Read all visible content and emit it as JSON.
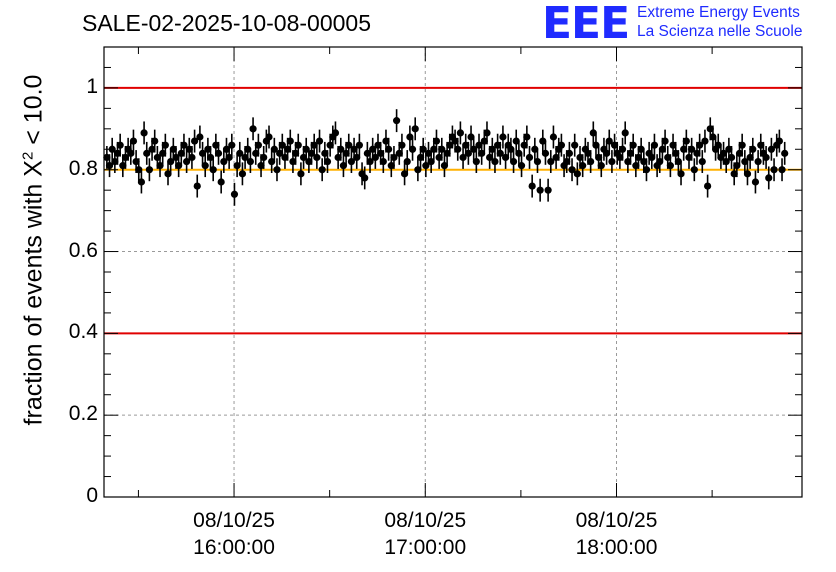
{
  "chart_data": {
    "type": "scatter",
    "title": "SALE-02-2025-10-08-00005",
    "ylabel_prefix": "fraction of events with X",
    "ylabel_sup": "2",
    "ylabel_suffix": " < 10.0",
    "ylim": [
      0,
      1.1
    ],
    "yticks": [
      "0",
      "0.2",
      "0.4",
      "0.6",
      "0.8",
      "1"
    ],
    "ytick_values": [
      0,
      0.2,
      0.4,
      0.6,
      0.8,
      1.0
    ],
    "xticks": [
      {
        "date": "08/10/25",
        "time": "16:00:00",
        "hour": 16.0
      },
      {
        "date": "08/10/25",
        "time": "17:00:00",
        "hour": 17.0
      },
      {
        "date": "08/10/25",
        "time": "18:00:00",
        "hour": 18.0
      }
    ],
    "xlim_hours": [
      15.32,
      18.97
    ],
    "reference_lines": [
      {
        "y": 1.0,
        "color": "#e00000"
      },
      {
        "y": 0.8,
        "color": "#ffb000"
      },
      {
        "y": 0.4,
        "color": "#e00000"
      }
    ],
    "grid": true,
    "series": [
      {
        "name": "fraction",
        "x_start_hour": 15.335,
        "x_step_hours": 0.0139,
        "error": 0.028,
        "values": [
          0.83,
          0.81,
          0.85,
          0.82,
          0.84,
          0.86,
          0.81,
          0.83,
          0.85,
          0.84,
          0.87,
          0.82,
          0.8,
          0.77,
          0.89,
          0.84,
          0.8,
          0.85,
          0.87,
          0.83,
          0.81,
          0.84,
          0.86,
          0.79,
          0.82,
          0.85,
          0.83,
          0.81,
          0.84,
          0.86,
          0.82,
          0.85,
          0.83,
          0.87,
          0.76,
          0.88,
          0.84,
          0.81,
          0.85,
          0.83,
          0.8,
          0.86,
          0.84,
          0.77,
          0.82,
          0.85,
          0.83,
          0.86,
          0.74,
          0.81,
          0.84,
          0.79,
          0.83,
          0.85,
          0.82,
          0.9,
          0.84,
          0.86,
          0.81,
          0.83,
          0.87,
          0.88,
          0.82,
          0.85,
          0.8,
          0.84,
          0.86,
          0.83,
          0.85,
          0.87,
          0.82,
          0.84,
          0.86,
          0.79,
          0.83,
          0.85,
          0.82,
          0.84,
          0.86,
          0.83,
          0.87,
          0.8,
          0.84,
          0.82,
          0.86,
          0.88,
          0.89,
          0.83,
          0.85,
          0.81,
          0.84,
          0.86,
          0.82,
          0.85,
          0.83,
          0.86,
          0.79,
          0.78,
          0.84,
          0.82,
          0.85,
          0.83,
          0.86,
          0.84,
          0.82,
          0.87,
          0.85,
          0.81,
          0.83,
          0.92,
          0.84,
          0.86,
          0.79,
          0.82,
          0.88,
          0.85,
          0.9,
          0.8,
          0.83,
          0.85,
          0.81,
          0.84,
          0.82,
          0.85,
          0.87,
          0.83,
          0.85,
          0.81,
          0.84,
          0.86,
          0.88,
          0.87,
          0.85,
          0.89,
          0.83,
          0.86,
          0.84,
          0.88,
          0.85,
          0.82,
          0.86,
          0.84,
          0.87,
          0.89,
          0.83,
          0.85,
          0.82,
          0.86,
          0.84,
          0.88,
          0.83,
          0.86,
          0.85,
          0.82,
          0.87,
          0.84,
          0.81,
          0.86,
          0.88,
          0.83,
          0.76,
          0.85,
          0.82,
          0.75,
          0.87,
          0.84,
          0.75,
          0.82,
          0.88,
          0.83,
          0.85,
          0.86,
          0.81,
          0.82,
          0.84,
          0.8,
          0.86,
          0.79,
          0.83,
          0.81,
          0.85,
          0.84,
          0.82,
          0.89,
          0.86,
          0.83,
          0.81,
          0.85,
          0.84,
          0.87,
          0.82,
          0.86,
          0.84,
          0.83,
          0.85,
          0.89,
          0.82,
          0.84,
          0.86,
          0.81,
          0.83,
          0.85,
          0.82,
          0.8,
          0.84,
          0.83,
          0.86,
          0.81,
          0.82,
          0.85,
          0.87,
          0.83,
          0.81,
          0.86,
          0.84,
          0.82,
          0.79,
          0.85,
          0.87,
          0.83,
          0.85,
          0.8,
          0.84,
          0.86,
          0.82,
          0.87,
          0.76,
          0.9,
          0.88,
          0.85,
          0.86,
          0.83,
          0.84,
          0.82,
          0.85,
          0.83,
          0.79,
          0.81,
          0.84,
          0.86,
          0.82,
          0.79,
          0.83,
          0.85,
          0.77,
          0.82,
          0.86,
          0.84,
          0.83,
          0.78,
          0.85,
          0.8,
          0.86,
          0.87,
          0.8,
          0.84
        ]
      }
    ]
  },
  "logo": {
    "mark": "EEE",
    "line1": "Extreme Energy Events",
    "line2": "La Scienza nelle Scuole"
  },
  "colors": {
    "axis": "#000000",
    "grid": "#9a9a9a",
    "marker": "#000000",
    "logo": "#1f2bff"
  }
}
